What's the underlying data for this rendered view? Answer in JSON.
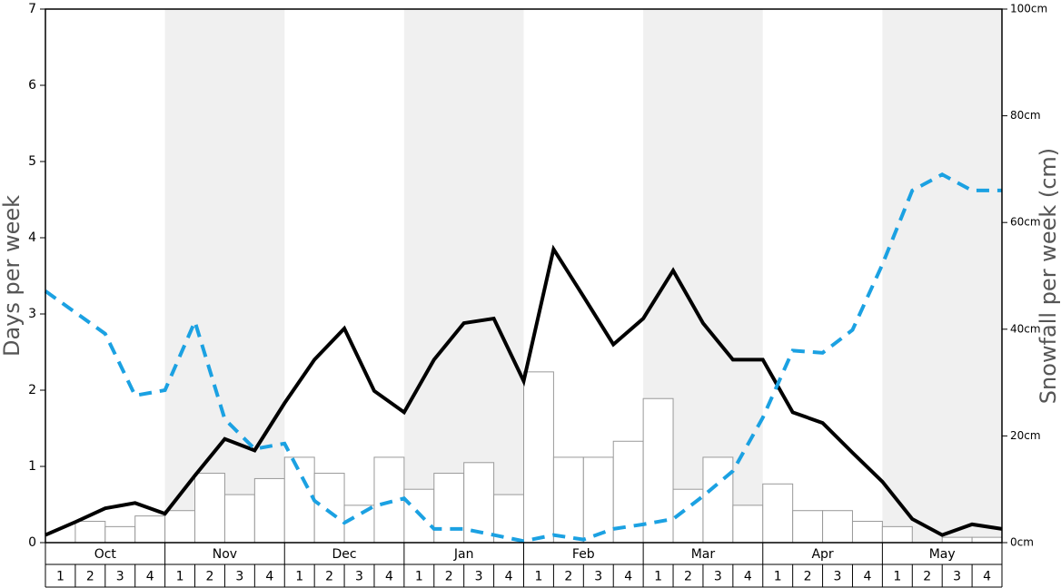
{
  "chart_data": {
    "type": "bar-line",
    "ylabel": "Days per week",
    "y2label": "Snowfall per week (cm)",
    "months": [
      "Oct",
      "Nov",
      "Dec",
      "Jan",
      "Feb",
      "Mar",
      "Apr",
      "May"
    ],
    "categories": [
      "1",
      "2",
      "3",
      "4",
      "1",
      "2",
      "3",
      "4",
      "1",
      "2",
      "3",
      "4",
      "1",
      "2",
      "3",
      "4",
      "1",
      "2",
      "3",
      "4",
      "1",
      "2",
      "3",
      "4",
      "1",
      "2",
      "3",
      "4",
      "1",
      "2",
      "3",
      "4"
    ],
    "ylim": [
      0,
      7
    ],
    "yticks": [
      0,
      1,
      2,
      3,
      4,
      5,
      6,
      7
    ],
    "y2lim": [
      0,
      100
    ],
    "y2ticks": [
      {
        "value": 0,
        "label": "0cm"
      },
      {
        "value": 20,
        "label": "20cm"
      },
      {
        "value": 40,
        "label": "40cm"
      },
      {
        "value": 60,
        "label": "60cm"
      },
      {
        "value": 80,
        "label": "80cm"
      },
      {
        "value": 100,
        "label": "100cm"
      }
    ],
    "bars": {
      "axis": "y2",
      "color": "#ffffff",
      "values": [
        0,
        4,
        3,
        5,
        6,
        13,
        9,
        12,
        16,
        13,
        7,
        16,
        10,
        13,
        15,
        9,
        32,
        16,
        16,
        19,
        27,
        10,
        16,
        7,
        11,
        6,
        6,
        4,
        3,
        0,
        1,
        1
      ]
    },
    "xlim": [
      0,
      32
    ],
    "x": [
      0,
      1,
      2,
      3,
      4,
      5,
      6,
      7,
      8,
      9,
      10,
      11,
      12,
      13,
      14,
      15,
      16,
      17,
      18,
      19,
      20,
      21,
      22,
      23,
      24,
      25,
      26,
      27,
      28,
      29,
      30,
      31,
      32
    ],
    "series": [
      {
        "color": "#000000",
        "dashed": false,
        "values": [
          0.1,
          0.27,
          0.45,
          0.52,
          0.38,
          0.88,
          1.36,
          1.21,
          1.83,
          2.4,
          2.81,
          1.99,
          1.71,
          2.4,
          2.88,
          2.94,
          2.12,
          3.85,
          3.23,
          2.6,
          2.94,
          3.57,
          2.88,
          2.4,
          2.4,
          1.71,
          1.57,
          1.18,
          0.8,
          0.31,
          0.1,
          0.24,
          0.18
        ]
      },
      {
        "color": "#1ba1e2",
        "dashed": true,
        "values": [
          3.3,
          3.02,
          2.74,
          1.93,
          2.0,
          2.9,
          1.62,
          1.23,
          1.3,
          0.55,
          0.26,
          0.48,
          0.58,
          0.18,
          0.18,
          0.1,
          0.02,
          0.1,
          0.04,
          0.18,
          0.24,
          0.31,
          0.61,
          0.94,
          1.64,
          2.52,
          2.49,
          2.79,
          3.65,
          4.62,
          4.83,
          4.62,
          4.62
        ]
      }
    ]
  }
}
